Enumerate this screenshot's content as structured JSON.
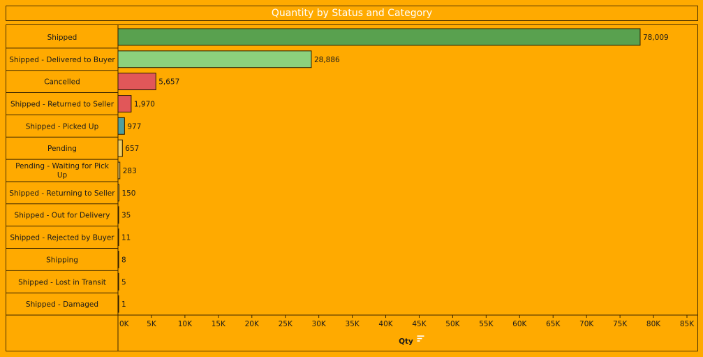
{
  "title": "Quantity by Status and Category",
  "chart_data": {
    "type": "bar",
    "orientation": "horizontal",
    "title": "Quantity by Status and Category",
    "xlabel": "Qty",
    "ylabel": "",
    "xlim": [
      0,
      85000
    ],
    "x_ticks": [
      0,
      5000,
      10000,
      15000,
      20000,
      25000,
      30000,
      35000,
      40000,
      45000,
      50000,
      55000,
      60000,
      65000,
      70000,
      75000,
      80000,
      85000
    ],
    "x_tick_labels": [
      "0K",
      "5K",
      "10K",
      "15K",
      "20K",
      "25K",
      "30K",
      "35K",
      "40K",
      "45K",
      "50K",
      "55K",
      "60K",
      "65K",
      "70K",
      "75K",
      "80K",
      "85K"
    ],
    "grid": false,
    "sorted": "descending",
    "categories": [
      "Shipped",
      "Shipped - Delivered to Buyer",
      "Cancelled",
      "Shipped - Returned to Seller",
      "Shipped - Picked Up",
      "Pending",
      "Pending - Waiting for Pick Up",
      "Shipped - Returning to Seller",
      "Shipped - Out for Delivery",
      "Shipped - Rejected by Buyer",
      "Shipping",
      "Shipped - Lost in Transit",
      "Shipped - Damaged"
    ],
    "label_lines": [
      [
        "Shipped"
      ],
      [
        "Shipped - Delivered to Buyer"
      ],
      [
        "Cancelled"
      ],
      [
        "Shipped - Returned to Seller"
      ],
      [
        "Shipped - Picked Up"
      ],
      [
        "Pending"
      ],
      [
        "Pending - Waiting for Pick",
        "Up"
      ],
      [
        "Shipped - Returning to Seller"
      ],
      [
        "Shipped - Out for Delivery"
      ],
      [
        "Shipped - Rejected by Buyer"
      ],
      [
        "Shipping"
      ],
      [
        "Shipped - Lost in Transit"
      ],
      [
        "Shipped - Damaged"
      ]
    ],
    "values": [
      78009,
      28886,
      5657,
      1970,
      977,
      657,
      283,
      150,
      35,
      11,
      8,
      5,
      1
    ],
    "value_labels": [
      "78,009",
      "28,886",
      "5,657",
      "1,970",
      "977",
      "657",
      "283",
      "150",
      "35",
      "11",
      "8",
      "5",
      "1"
    ],
    "colors": [
      "#59A14F",
      "#8CD17D",
      "#E15759",
      "#E15759",
      "#4E9F9F",
      "#F1CE63",
      "#F1CE63",
      "#F1CE63",
      "#F1CE63",
      "#F1CE63",
      "#F1CE63",
      "#F1CE63",
      "#F1CE63"
    ]
  }
}
